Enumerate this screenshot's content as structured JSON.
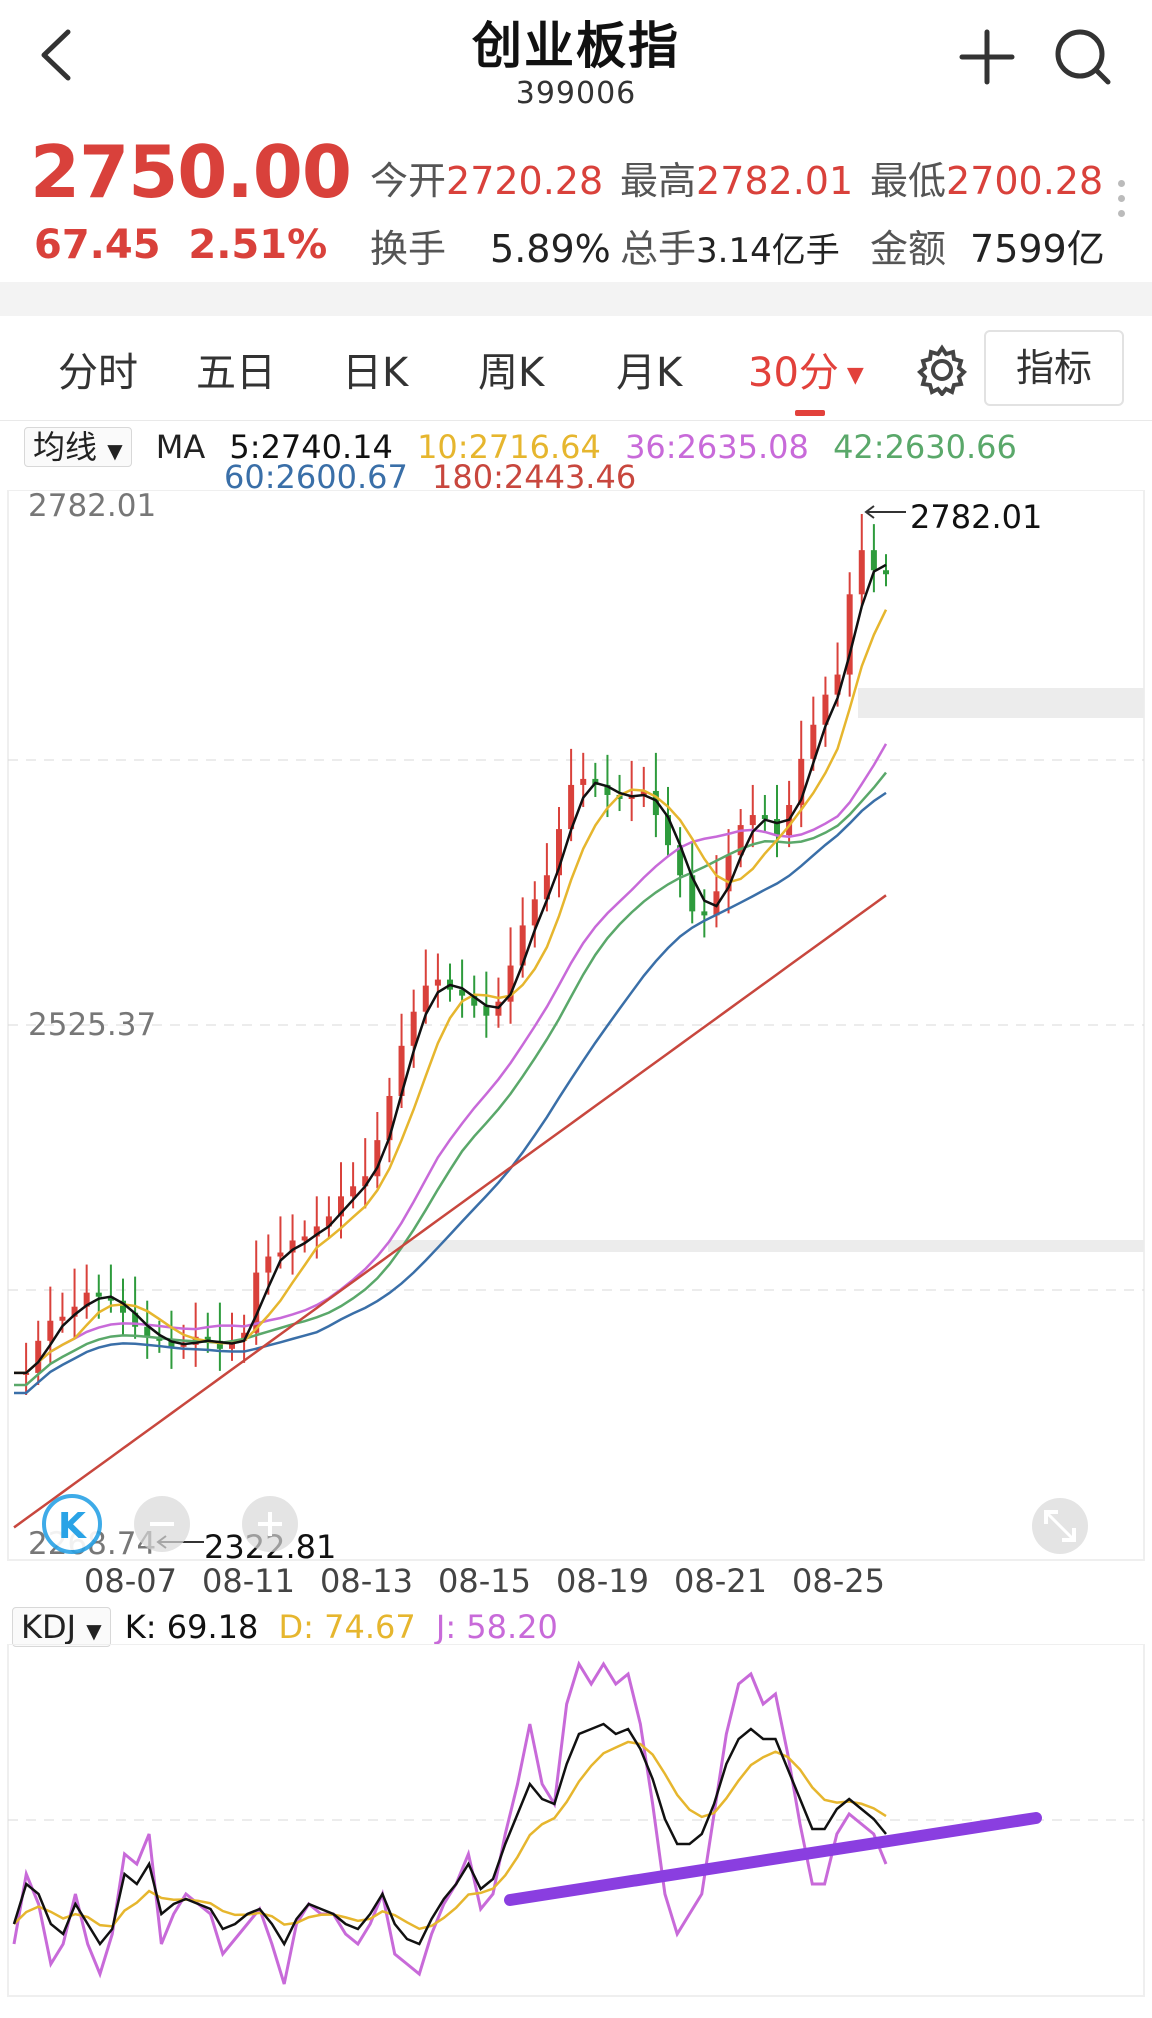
{
  "header": {
    "back_icon": "chevron-left-icon",
    "title": "创业板指",
    "code": "399006",
    "add_icon": "plus-icon",
    "search_icon": "search-icon"
  },
  "quote": {
    "price": "2750.00",
    "change": "67.45",
    "change_pct": "2.51%",
    "open_label": "今开",
    "open": "2720.28",
    "high_label": "最高",
    "high": "2782.01",
    "low_label": "最低",
    "low": "2700.28",
    "turnover_label": "换手",
    "turnover": "5.89%",
    "volume_label": "总手",
    "volume": "3.14亿手",
    "amount_label": "金额",
    "amount": "7599亿"
  },
  "tabs": {
    "items": [
      "分时",
      "五日",
      "日K",
      "周K",
      "月K"
    ],
    "active": "30分",
    "indicator_button": "指标",
    "settings_icon": "gear-icon"
  },
  "ma_legend": {
    "dropdown": "均线",
    "label": "MA",
    "ma5": "5:2740.14",
    "ma10": "10:2716.64",
    "ma36": "36:2635.08",
    "ma42": "42:2630.66",
    "ma60": "60:2600.67",
    "ma180": "180:2443.46"
  },
  "colors": {
    "up": "#d9413b",
    "down": "#2e9b3c",
    "ma5": "#111111",
    "ma10": "#e6b62e",
    "ma36": "#c86ad9",
    "ma42": "#5aa86a",
    "ma60": "#3a6fa8",
    "ma180": "#c8473e",
    "k": "#111111",
    "d": "#e6b62e",
    "j": "#c86ad9",
    "trendline": "#8a3ee0"
  },
  "price_chart": {
    "y_top_label": "2782.01",
    "y_mid_label": "2525.37",
    "y_bottom_label": "2268.74",
    "high_marker": "2782.01",
    "low_marker": "2322.81",
    "x_labels": [
      "08-07",
      "08-11",
      "08-13",
      "08-15",
      "08-19",
      "08-21",
      "08-25"
    ],
    "kline_logo_icon": "k-logo-icon",
    "zoom_out_icon": "minus-icon",
    "zoom_in_icon": "plus-icon",
    "fullscreen_icon": "expand-icon"
  },
  "kdj": {
    "dropdown": "KDJ",
    "k": "K: 69.18",
    "d": "D: 74.67",
    "j": "J: 58.20"
  },
  "chart_data": {
    "type": "candlestick",
    "ylim": [
      2268.74,
      2782.01
    ],
    "close_path": [
      2352,
      2352,
      2368,
      2378,
      2380,
      2385,
      2392,
      2390,
      2388,
      2382,
      2375,
      2370,
      2368,
      2365,
      2366,
      2370,
      2368,
      2364,
      2368,
      2372,
      2402,
      2410,
      2412,
      2418,
      2420,
      2425,
      2430,
      2440,
      2445,
      2450,
      2468,
      2490,
      2515,
      2532,
      2545,
      2548,
      2543,
      2540,
      2535,
      2530,
      2537,
      2555,
      2575,
      2588,
      2600,
      2623,
      2645,
      2648,
      2645,
      2640,
      2638,
      2640,
      2642,
      2630,
      2615,
      2600,
      2582,
      2580,
      2592,
      2610,
      2625,
      2630,
      2628,
      2620,
      2635,
      2658,
      2675,
      2690,
      2700,
      2740,
      2762,
      2752,
      2750
    ]
  }
}
